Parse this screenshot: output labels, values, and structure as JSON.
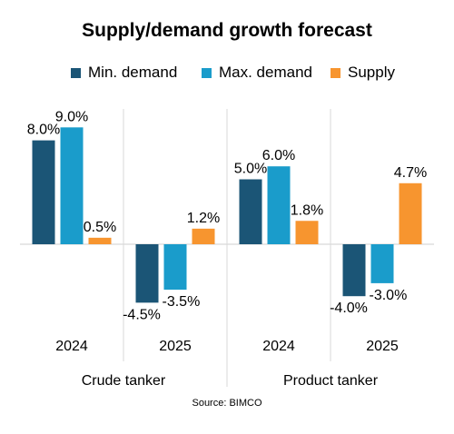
{
  "chart_data": {
    "type": "bar",
    "title": "Supply/demand growth forecast",
    "source": "Source: BIMCO",
    "groups": [
      {
        "name": "Crude tanker",
        "years": [
          {
            "label": "2024",
            "values": [
              8.0,
              9.0,
              0.5
            ],
            "labels": [
              "8.0%",
              "9.0%",
              "0.5%"
            ]
          },
          {
            "label": "2025",
            "values": [
              -4.5,
              -3.5,
              1.2
            ],
            "labels": [
              "-4.5%",
              "-3.5%",
              "1.2%"
            ]
          }
        ]
      },
      {
        "name": "Product tanker",
        "years": [
          {
            "label": "2024",
            "values": [
              5.0,
              6.0,
              1.8
            ],
            "labels": [
              "5.0%",
              "6.0%",
              "1.8%"
            ]
          },
          {
            "label": "2025",
            "values": [
              -4.0,
              -3.0,
              4.7
            ],
            "labels": [
              "-4.0%",
              "-3.0%",
              "4.7%"
            ]
          }
        ]
      }
    ],
    "series": [
      {
        "name": "Min. demand",
        "color": "#1B5576"
      },
      {
        "name": "Max. demand",
        "color": "#1A9CCB"
      },
      {
        "name": "Supply",
        "color": "#F7952F"
      }
    ],
    "ylim": [
      -6.5,
      10
    ],
    "grid": false,
    "legend_position": "top"
  }
}
